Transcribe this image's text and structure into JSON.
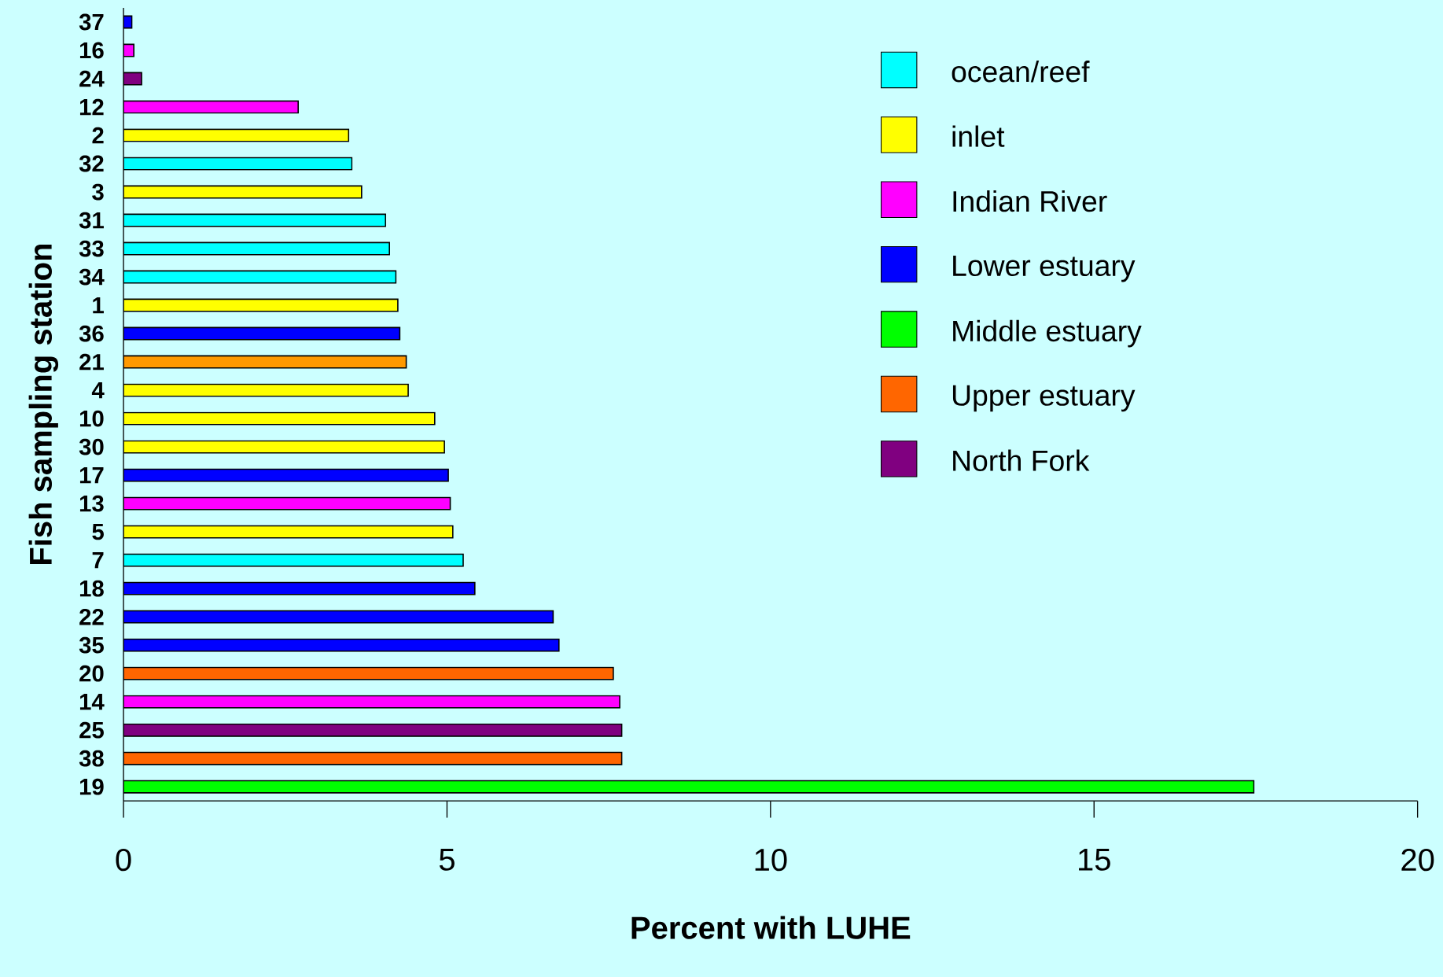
{
  "chart_data": {
    "type": "bar",
    "orientation": "horizontal",
    "xlabel": "Percent with LUHE",
    "ylabel": "Fish sampling station",
    "categories": [
      "37",
      "16",
      "24",
      "12",
      "2",
      "32",
      "3",
      "31",
      "33",
      "34",
      "1",
      "36",
      "21",
      "4",
      "10",
      "30",
      "17",
      "13",
      "5",
      "7",
      "18",
      "22",
      "35",
      "20",
      "14",
      "25",
      "38",
      "19"
    ],
    "series": [
      {
        "name": "ocean/reef",
        "color": "#00ffff",
        "values": [
          null,
          null,
          null,
          null,
          null,
          3.53,
          null,
          4.05,
          4.11,
          4.21,
          null,
          null,
          null,
          null,
          null,
          null,
          null,
          null,
          null,
          5.25,
          null,
          null,
          null,
          null,
          null,
          null,
          null,
          null
        ]
      },
      {
        "name": "inlet",
        "color": "#ffff00",
        "values": [
          null,
          null,
          null,
          null,
          3.48,
          null,
          3.68,
          null,
          null,
          null,
          4.24,
          null,
          null,
          4.4,
          4.81,
          4.96,
          null,
          null,
          5.09,
          null,
          null,
          null,
          null,
          null,
          null,
          null,
          null,
          null
        ]
      },
      {
        "name": "Indian River",
        "color": "#ff00ff",
        "values": [
          null,
          0.16,
          null,
          2.7,
          null,
          null,
          null,
          null,
          null,
          null,
          null,
          null,
          null,
          null,
          null,
          null,
          null,
          5.05,
          null,
          null,
          null,
          null,
          null,
          null,
          7.67,
          null,
          null,
          null
        ]
      },
      {
        "name": "Lower estuary",
        "color": "#0000ff",
        "values": [
          0.13,
          null,
          null,
          null,
          null,
          null,
          null,
          null,
          null,
          null,
          null,
          4.27,
          null,
          null,
          null,
          null,
          5.02,
          null,
          null,
          null,
          5.43,
          6.64,
          6.73,
          null,
          null,
          null,
          null,
          null
        ]
      },
      {
        "name": "Middle estuary",
        "color": "#00ff00",
        "values": [
          null,
          null,
          null,
          null,
          null,
          null,
          null,
          null,
          null,
          null,
          null,
          null,
          null,
          null,
          null,
          null,
          null,
          null,
          null,
          null,
          null,
          null,
          null,
          null,
          null,
          null,
          null,
          17.47
        ]
      },
      {
        "name": "Upper estuary",
        "color": "#ff6600",
        "colors": [
          null,
          null,
          null,
          null,
          null,
          null,
          null,
          null,
          null,
          null,
          null,
          null,
          "#ff9900",
          null,
          null,
          null,
          null,
          null,
          null,
          null,
          null,
          null,
          null,
          "#ff6600",
          null,
          null,
          "#ff6600",
          null
        ],
        "values": [
          null,
          null,
          null,
          null,
          null,
          null,
          null,
          null,
          null,
          null,
          null,
          null,
          4.37,
          null,
          null,
          null,
          null,
          null,
          null,
          null,
          null,
          null,
          null,
          7.57,
          null,
          null,
          7.7,
          null
        ]
      },
      {
        "name": "North Fork",
        "color": "#800080",
        "values": [
          null,
          null,
          0.28,
          null,
          null,
          null,
          null,
          null,
          null,
          null,
          null,
          null,
          null,
          null,
          null,
          null,
          null,
          null,
          null,
          null,
          null,
          null,
          null,
          null,
          null,
          7.7,
          null,
          null
        ]
      }
    ],
    "xlim": [
      0,
      20
    ],
    "xticks": [
      0,
      5,
      10,
      15,
      20
    ],
    "legend": "top right",
    "grid": false
  }
}
